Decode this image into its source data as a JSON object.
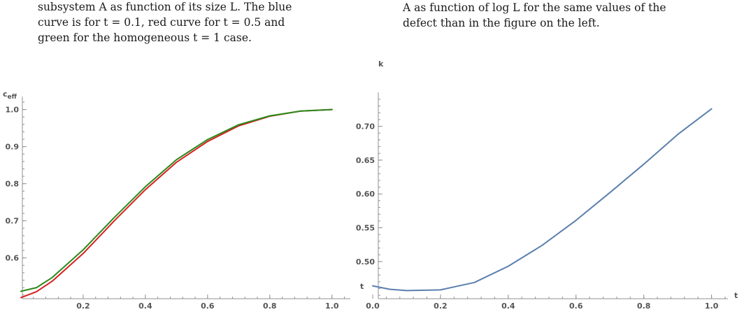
{
  "captions": {
    "left": [
      "subsystem A as function of its size L. The blue",
      "curve is for t = 0.1, red curve for t = 0.5 and",
      "green for the homogeneous t = 1 case."
    ],
    "right": [
      "A as function of log L for the same values of the",
      "defect than in the figure on the left."
    ]
  },
  "chart_data": [
    {
      "type": "line",
      "title": "",
      "xlabel": "t",
      "ylabel": "c",
      "ylabel_sub": "eff",
      "xlim": [
        0,
        1.05
      ],
      "ylim": [
        0.49,
        1.02
      ],
      "xticks": [
        0.2,
        0.4,
        0.6,
        0.8,
        1.0
      ],
      "xtick_labels": [
        "0.2",
        "0.4",
        "0.6",
        "0.8",
        "1.0"
      ],
      "yticks": [
        0.6,
        0.7,
        0.8,
        0.9,
        1.0
      ],
      "ytick_labels": [
        "0.6",
        "0.7",
        "0.8",
        "0.9",
        "1.0"
      ],
      "grid": false,
      "series": [
        {
          "color": "#d62020",
          "x": [
            0.0,
            0.05,
            0.1,
            0.2,
            0.3,
            0.4,
            0.5,
            0.6,
            0.7,
            0.8,
            0.9,
            1.0
          ],
          "y": [
            0.493,
            0.509,
            0.537,
            0.612,
            0.7,
            0.784,
            0.858,
            0.914,
            0.956,
            0.982,
            0.996,
            1.0
          ]
        },
        {
          "color": "#2a8a1a",
          "x": [
            0.0,
            0.05,
            0.1,
            0.2,
            0.3,
            0.4,
            0.5,
            0.6,
            0.7,
            0.8,
            0.9,
            1.0
          ],
          "y": [
            0.51,
            0.52,
            0.547,
            0.622,
            0.709,
            0.792,
            0.865,
            0.919,
            0.959,
            0.983,
            0.996,
            1.0
          ]
        }
      ]
    },
    {
      "type": "line",
      "title": "",
      "xlabel": "t",
      "ylabel": "k",
      "xlim": [
        0,
        1.04
      ],
      "ylim": [
        0.445,
        0.742
      ],
      "xticks": [
        0.0,
        0.2,
        0.4,
        0.6,
        0.8,
        1.0
      ],
      "xtick_labels": [
        "0.0",
        "0.2",
        "0.4",
        "0.6",
        "0.8",
        "1.0"
      ],
      "yticks": [
        0.5,
        0.55,
        0.6,
        0.65,
        0.7
      ],
      "ytick_labels": [
        "0.50",
        "0.55",
        "0.60",
        "0.65",
        "0.70"
      ],
      "grid": false,
      "series": [
        {
          "color": "#5b7fae",
          "x": [
            0.0,
            0.05,
            0.1,
            0.2,
            0.3,
            0.4,
            0.5,
            0.6,
            0.7,
            0.8,
            0.9,
            1.0
          ],
          "y": [
            0.464,
            0.459,
            0.457,
            0.458,
            0.469,
            0.493,
            0.524,
            0.561,
            0.602,
            0.644,
            0.688,
            0.726
          ]
        }
      ]
    }
  ]
}
